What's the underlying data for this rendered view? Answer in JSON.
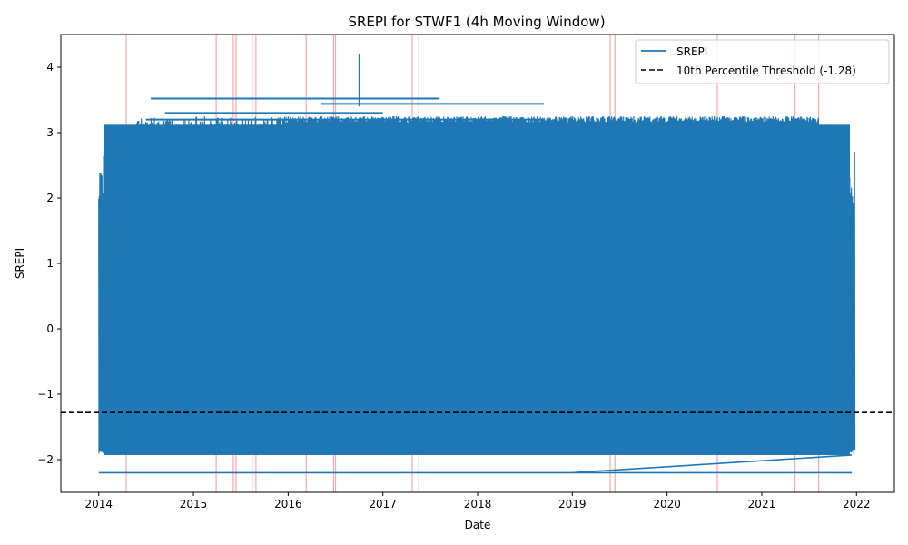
{
  "chart_data": {
    "type": "line",
    "title": "SREPI for STWF1 (4h Moving Window)",
    "xlabel": "Date",
    "ylabel": "SREPI",
    "xlim": [
      2013.6,
      2022.4
    ],
    "ylim": [
      -2.5,
      4.5
    ],
    "x_ticks": [
      {
        "value": 2014,
        "label": "2014"
      },
      {
        "value": 2015,
        "label": "2015"
      },
      {
        "value": 2016,
        "label": "2016"
      },
      {
        "value": 2017,
        "label": "2017"
      },
      {
        "value": 2018,
        "label": "2018"
      },
      {
        "value": 2019,
        "label": "2019"
      },
      {
        "value": 2020,
        "label": "2020"
      },
      {
        "value": 2021,
        "label": "2021"
      },
      {
        "value": 2022,
        "label": "2022"
      }
    ],
    "y_ticks": [
      {
        "value": -2,
        "label": "−2"
      },
      {
        "value": -1,
        "label": "−1"
      },
      {
        "value": 0,
        "label": "0"
      },
      {
        "value": 1,
        "label": "1"
      },
      {
        "value": 2,
        "label": "2"
      },
      {
        "value": 3,
        "label": "3"
      },
      {
        "value": 4,
        "label": "4"
      }
    ],
    "grid": false,
    "legend_position": "top-right",
    "series": [
      {
        "name": "SREPI",
        "color": "#1f77b4",
        "x_range": [
          2014.0,
          2021.98
        ],
        "y_band": [
          -1.93,
          1.8
        ],
        "min_value": -2.2,
        "max_value": 4.2,
        "peak_x": 2016.75,
        "high_excursions": [
          {
            "x_start": 2014.2,
            "x_end": 2014.9,
            "y": 2.78
          },
          {
            "x_start": 2014.3,
            "x_end": 2014.6,
            "y": 2.6
          },
          {
            "x_start": 2014.55,
            "x_end": 2017.6,
            "y": 3.52
          },
          {
            "x_start": 2014.7,
            "x_end": 2017.0,
            "y": 3.3
          },
          {
            "x_start": 2014.5,
            "x_end": 2018.7,
            "y": 3.2
          },
          {
            "x_start": 2016.35,
            "x_end": 2018.7,
            "y": 3.44
          },
          {
            "x_start": 2015.0,
            "x_end": 2021.0,
            "y": 3.1
          },
          {
            "x_start": 2014.9,
            "x_end": 2021.5,
            "y": 3.05
          },
          {
            "x_start": 2019.5,
            "x_end": 2021.7,
            "y": 2.95
          },
          {
            "x_start": 2020.8,
            "x_end": 2021.8,
            "y": 2.78
          }
        ],
        "low_segments": [
          {
            "x": [
              2014.0,
              2021.95
            ],
            "y": [
              -2.2,
              -2.2
            ]
          },
          {
            "x": [
              2019.0,
              2021.95
            ],
            "y": [
              -2.2,
              -1.93
            ]
          }
        ]
      },
      {
        "name": "10th Percentile Threshold (-1.28)",
        "color": "#000000",
        "style": "dashed",
        "y": -1.28
      }
    ],
    "highlight_lines": {
      "color": "#ff0000",
      "x": [
        2014.29,
        2015.24,
        2015.42,
        2015.45,
        2015.62,
        2015.66,
        2016.19,
        2016.48,
        2016.5,
        2017.31,
        2017.38,
        2019.4,
        2019.45,
        2020.53,
        2021.35,
        2021.6
      ]
    }
  }
}
